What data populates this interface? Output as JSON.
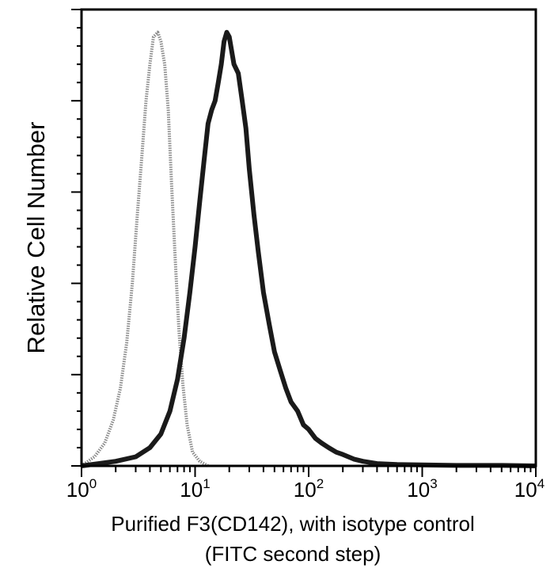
{
  "chart_data": {
    "type": "line",
    "title": "",
    "xlabel": "Purified F3(CD142), with isotype control",
    "xlabel_line2": "(FITC second step)",
    "ylabel": "Relative Cell Number",
    "xscale": "log",
    "xlim": [
      1,
      10000
    ],
    "ylim": [
      0,
      100
    ],
    "x_ticks": [
      {
        "base": "10",
        "exp": "0",
        "value": 1
      },
      {
        "base": "10",
        "exp": "1",
        "value": 10
      },
      {
        "base": "10",
        "exp": "2",
        "value": 100
      },
      {
        "base": "10",
        "exp": "3",
        "value": 1000
      },
      {
        "base": "10",
        "exp": "4",
        "value": 10000
      }
    ],
    "y_ticks_count": 5,
    "grid": false,
    "legend": null,
    "series": [
      {
        "name": "Isotype control",
        "style": "dotted-gray",
        "color": "#8a8a8a",
        "x": [
          1.0,
          1.3,
          1.6,
          1.9,
          2.2,
          2.5,
          2.8,
          3.1,
          3.4,
          3.7,
          4.0,
          4.3,
          4.7,
          5.0,
          5.4,
          5.8,
          6.2,
          6.7,
          7.2,
          7.8,
          8.5,
          9.5,
          11,
          13
        ],
        "values": [
          0,
          2,
          5,
          10,
          17,
          27,
          40,
          55,
          68,
          80,
          88,
          94,
          95,
          93,
          88,
          78,
          62,
          45,
          30,
          18,
          9,
          3,
          1,
          0
        ]
      },
      {
        "name": "Purified F3(CD142)",
        "style": "solid-black",
        "color": "#1a1a1a",
        "x": [
          1.0,
          2.0,
          3.0,
          4.0,
          5.0,
          6.0,
          7.0,
          8.0,
          9.0,
          10,
          11,
          12,
          13,
          14,
          15,
          16,
          17,
          18,
          19,
          20,
          22,
          24,
          26,
          28,
          30,
          33,
          36,
          40,
          45,
          50,
          56,
          63,
          70,
          80,
          90,
          100,
          115,
          130,
          150,
          175,
          200,
          250,
          300,
          400,
          600,
          1000,
          2000,
          5000,
          10000
        ],
        "values": [
          0,
          1,
          2,
          4,
          7,
          12,
          19,
          28,
          38,
          48,
          58,
          67,
          75,
          78,
          80,
          84,
          88,
          93,
          95,
          94,
          88,
          86,
          80,
          74,
          65,
          55,
          47,
          38,
          31,
          25,
          21,
          17,
          14,
          12,
          9,
          8,
          6,
          5,
          4,
          3,
          2.5,
          1.5,
          1,
          0.5,
          0.3,
          0.2,
          0.1,
          0.1,
          0
        ]
      }
    ]
  }
}
